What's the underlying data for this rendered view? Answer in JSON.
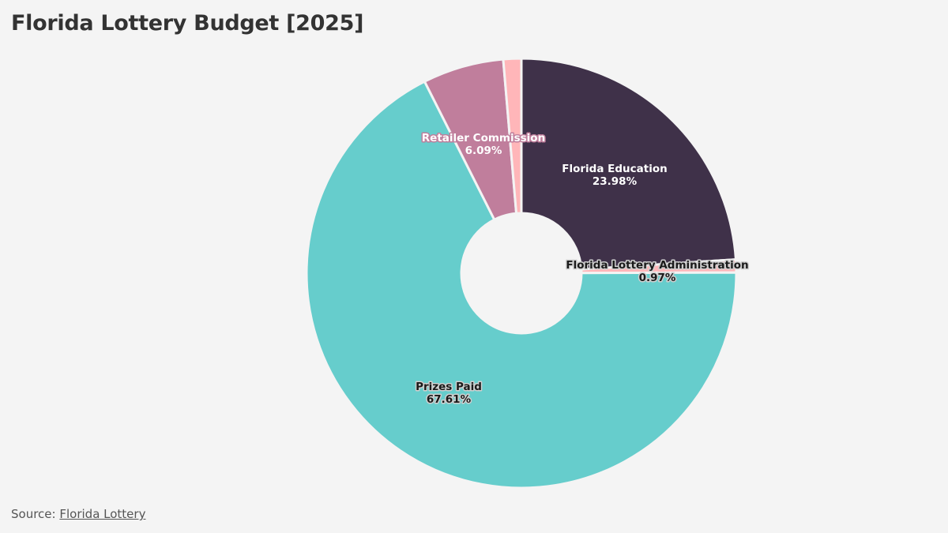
{
  "title": "Florida Lottery Budget [2025]",
  "source": {
    "prefix": "Source:",
    "link_text": "Florida Lottery"
  },
  "chart_data": {
    "type": "pie",
    "variant": "donut",
    "title": "Florida Lottery Budget [2025]",
    "slices": [
      {
        "label": "Florida Education",
        "value": 23.98,
        "value_label": "23.98%",
        "color": "#3f3149",
        "text_color": "#ffffff"
      },
      {
        "label": "Florida Lottery Administration",
        "value": 0.97,
        "value_label": "0.97%",
        "color": "#ffb6b9",
        "text_color": "#1a1a1a"
      },
      {
        "label": "Prizes Paid",
        "value": 67.61,
        "value_label": "67.61%",
        "color": "#66cdcc",
        "text_color": "#1a1a1a"
      },
      {
        "label": "Retailer Commission",
        "value": 6.09,
        "value_label": "6.09%",
        "color": "#c07e9c",
        "text_color": "#ffffff"
      },
      {
        "label": "",
        "value": 1.35,
        "value_label": "",
        "color": "#ffb6b9",
        "text_color": "#1a1a1a"
      }
    ]
  }
}
